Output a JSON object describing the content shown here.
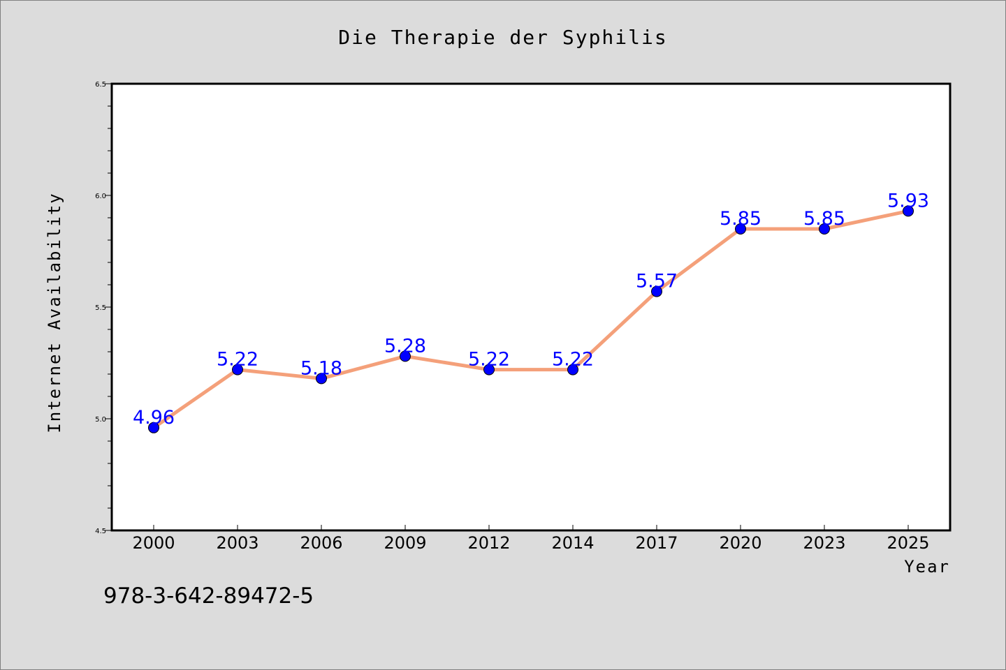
{
  "chart_data": {
    "type": "line",
    "title": "Die Therapie der Syphilis",
    "xlabel": "Year",
    "ylabel": "Internet Availability",
    "categories": [
      "2000",
      "2003",
      "2006",
      "2009",
      "2012",
      "2014",
      "2017",
      "2020",
      "2023",
      "2025"
    ],
    "series": [
      {
        "values": [
          4.96,
          5.22,
          5.18,
          5.28,
          5.22,
          5.22,
          5.57,
          5.85,
          5.85,
          5.93
        ],
        "labels": [
          "4.96",
          "5.22",
          "5.18",
          "5.28",
          "5.22",
          "5.22",
          "5.57",
          "5.85",
          "5.85",
          "5.93"
        ]
      }
    ],
    "ylim": [
      4.5,
      6.5
    ],
    "yticks": [
      "4.5",
      "5.0",
      "5.5",
      "6.0",
      "6.5"
    ],
    "grid": false,
    "legend": "none",
    "line_color": "#f4a07a",
    "marker_color": "#0000ff",
    "label_color": "#0000ff"
  },
  "footer": {
    "isbn": "978-3-642-89472-5"
  }
}
